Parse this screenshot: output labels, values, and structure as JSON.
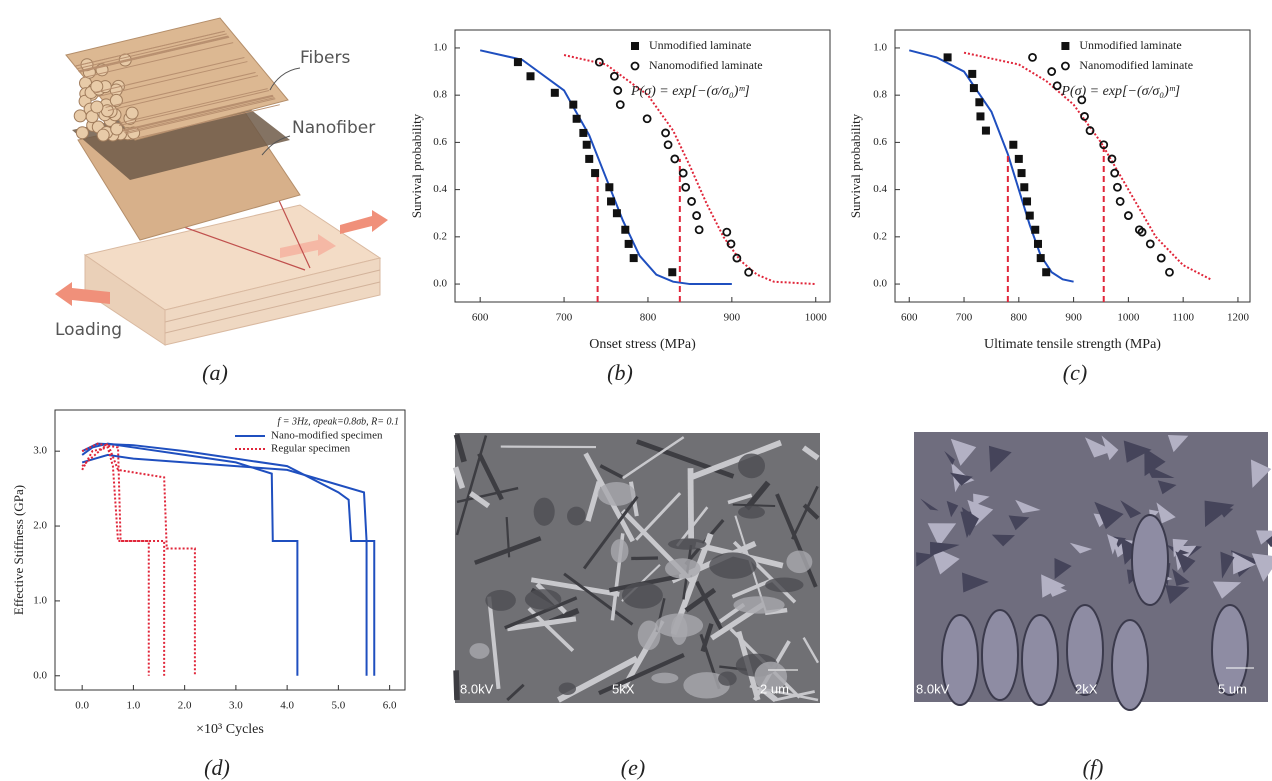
{
  "panel_a": {
    "labels": [
      "Fibers",
      "Nanofiber",
      "Loading"
    ],
    "caption": "(a)"
  },
  "chart_data": [
    {
      "type": "scatter",
      "caption": "(b)",
      "xlabel": "Onset stress (MPa)",
      "ylabel": "Survival probability",
      "xlim": [
        570,
        1017
      ],
      "ylim": [
        -0.076,
        1.076
      ],
      "xticks": [
        600,
        700,
        800,
        900,
        1000
      ],
      "yticks": [
        {
          "value": 0,
          "label": "0.0"
        },
        0.2,
        0.4,
        0.6,
        0.8,
        {
          "value": 1,
          "label": "1.0"
        }
      ],
      "legend": "upper right",
      "annotation": "P(σ) = exp[−(σ/σ₀)ᵐ]",
      "series": [
        {
          "name": "Unmodified laminate",
          "color": "#111111",
          "marker": "square",
          "x": [
            645,
            660,
            689,
            711,
            715,
            723,
            727,
            730,
            737,
            754,
            756,
            763,
            773,
            777,
            783,
            829
          ],
          "values": [
            0.94,
            0.88,
            0.81,
            0.76,
            0.7,
            0.64,
            0.59,
            0.53,
            0.47,
            0.41,
            0.35,
            0.3,
            0.23,
            0.17,
            0.11,
            0.05
          ]
        },
        {
          "name": "Nanomodified laminate",
          "color": "#111111",
          "marker": "circle",
          "x": [
            742,
            760,
            764,
            767,
            799,
            821,
            824,
            832,
            842,
            845,
            852,
            858,
            861,
            894,
            899,
            906,
            920
          ],
          "values": [
            0.94,
            0.88,
            0.82,
            0.76,
            0.7,
            0.64,
            0.59,
            0.53,
            0.47,
            0.41,
            0.35,
            0.29,
            0.23,
            0.22,
            0.17,
            0.11,
            0.05
          ]
        }
      ],
      "fit_lines": [
        {
          "color": "#1f4fbf",
          "style": "solid",
          "x": [
            600,
            650,
            700,
            730,
            750,
            770,
            790,
            810,
            830,
            850,
            900
          ],
          "values": [
            0.99,
            0.95,
            0.82,
            0.63,
            0.45,
            0.27,
            0.12,
            0.04,
            0.01,
            0,
            0
          ]
        },
        {
          "color": "#e0263a",
          "style": "dotted",
          "x": [
            700,
            750,
            800,
            830,
            850,
            870,
            890,
            910,
            930,
            950,
            1000
          ],
          "values": [
            0.97,
            0.93,
            0.8,
            0.65,
            0.5,
            0.34,
            0.2,
            0.1,
            0.04,
            0.01,
            0
          ]
        }
      ],
      "reference_lines": [
        {
          "x": 740,
          "y": 0.47,
          "color": "#e0263a"
        },
        {
          "x": 838,
          "y": 0.53,
          "color": "#e0263a"
        }
      ]
    },
    {
      "type": "scatter",
      "caption": "(c)",
      "xlabel": "Ultimate tensile strength (MPa)",
      "ylabel": "Survival probability",
      "xlim": [
        574,
        1222
      ],
      "ylim": [
        -0.076,
        1.076
      ],
      "xticks": [
        600,
        700,
        800,
        900,
        1000,
        1100,
        1200
      ],
      "yticks": [
        {
          "value": 0,
          "label": "0.0"
        },
        0.2,
        0.4,
        0.6,
        0.8,
        {
          "value": 1,
          "label": "1.0"
        }
      ],
      "legend": "upper right",
      "annotation": "P(σ) = exp[−(σ/σ₀)ᵐ]",
      "series": [
        {
          "name": "Unmodified laminate",
          "color": "#111111",
          "marker": "square",
          "x": [
            670,
            715,
            718,
            728,
            730,
            740,
            790,
            800,
            805,
            810,
            815,
            820,
            830,
            835,
            840,
            850
          ],
          "values": [
            0.96,
            0.89,
            0.83,
            0.77,
            0.71,
            0.65,
            0.59,
            0.53,
            0.47,
            0.41,
            0.35,
            0.29,
            0.23,
            0.17,
            0.11,
            0.05
          ]
        },
        {
          "name": "Nanomodified laminate",
          "color": "#111111",
          "marker": "circle",
          "x": [
            825,
            860,
            870,
            915,
            920,
            930,
            955,
            970,
            975,
            980,
            985,
            1000,
            1020,
            1025,
            1040,
            1060,
            1075
          ],
          "values": [
            0.96,
            0.9,
            0.84,
            0.78,
            0.71,
            0.65,
            0.59,
            0.53,
            0.47,
            0.41,
            0.35,
            0.29,
            0.23,
            0.22,
            0.17,
            0.11,
            0.05
          ]
        }
      ],
      "fit_lines": [
        {
          "color": "#1f4fbf",
          "style": "solid",
          "x": [
            600,
            650,
            700,
            750,
            780,
            800,
            820,
            840,
            860,
            880,
            900
          ],
          "values": [
            0.99,
            0.96,
            0.9,
            0.73,
            0.55,
            0.4,
            0.25,
            0.12,
            0.05,
            0.02,
            0.01
          ]
        },
        {
          "color": "#e0263a",
          "style": "dotted",
          "x": [
            700,
            800,
            850,
            900,
            950,
            1000,
            1050,
            1100,
            1150
          ],
          "values": [
            0.98,
            0.93,
            0.86,
            0.76,
            0.6,
            0.4,
            0.2,
            0.08,
            0.02
          ]
        }
      ],
      "reference_lines": [
        {
          "x": 780,
          "y": 0.55,
          "color": "#e0263a"
        },
        {
          "x": 955,
          "y": 0.59,
          "color": "#e0263a"
        }
      ]
    },
    {
      "type": "line",
      "caption": "(d)",
      "xlabel": "×10³ Cycles",
      "ylabel": "Effective Stiffness (GPa)",
      "xlim": [
        -0.53,
        6.3
      ],
      "ylim": [
        -0.19,
        3.55
      ],
      "xticks": [
        {
          "value": 0,
          "label": "0.0"
        },
        {
          "value": 1,
          "label": "1.0"
        },
        {
          "value": 2,
          "label": "2.0"
        },
        {
          "value": 3,
          "label": "3.0"
        },
        {
          "value": 4,
          "label": "4.0"
        },
        {
          "value": 5,
          "label": "5.0"
        },
        {
          "value": 6,
          "label": "6.0"
        }
      ],
      "yticks": [
        {
          "value": 0,
          "label": "0.0"
        },
        {
          "value": 1,
          "label": "1.0"
        },
        {
          "value": 2,
          "label": "2.0"
        },
        {
          "value": 3,
          "label": "3.0"
        }
      ],
      "legend": "upper right",
      "annotation": "f = 3Hz, σpeak=0.8σb, R= 0.1",
      "series": [
        {
          "name": "Nano-modified specimen",
          "color": "#1f4fbf",
          "style": "solid",
          "curves": [
            {
              "x": [
                0,
                0.2,
                0.5,
                1,
                2,
                3,
                3.7,
                3.72,
                4.2,
                4.2
              ],
              "values": [
                2.95,
                3.05,
                3.1,
                3.05,
                2.95,
                2.85,
                2.7,
                1.8,
                1.8,
                0
              ]
            },
            {
              "x": [
                0,
                0.3,
                1,
                2,
                3,
                4,
                5,
                5.2,
                5.25,
                5.55,
                5.55
              ],
              "values": [
                3.0,
                3.1,
                3.08,
                3.0,
                2.9,
                2.8,
                2.45,
                2.35,
                1.8,
                1.8,
                0
              ]
            },
            {
              "x": [
                0,
                0.5,
                1,
                2,
                3,
                4,
                4.5,
                5.5,
                5.55,
                5.7,
                5.7
              ],
              "values": [
                2.85,
                2.95,
                2.9,
                2.85,
                2.8,
                2.75,
                2.65,
                2.45,
                1.8,
                1.8,
                0
              ]
            }
          ]
        },
        {
          "name": "Regular specimen",
          "color": "#e0263a",
          "style": "dotted",
          "curves": [
            {
              "x": [
                0,
                0.2,
                0.5,
                0.6,
                0.7,
                1.3,
                1.3
              ],
              "values": [
                2.75,
                3.0,
                3.05,
                2.8,
                1.8,
                1.8,
                0
              ]
            },
            {
              "x": [
                0,
                0.3,
                0.7,
                0.75,
                1.6,
                1.6
              ],
              "values": [
                3.0,
                3.1,
                3.05,
                1.8,
                1.8,
                0
              ]
            },
            {
              "x": [
                0,
                0.5,
                0.7,
                1.6,
                1.65,
                2.2,
                2.2
              ],
              "values": [
                2.8,
                3.1,
                2.75,
                2.65,
                1.7,
                1.7,
                0
              ]
            }
          ]
        }
      ]
    }
  ],
  "panel_e": {
    "caption": "(e)",
    "labels": [
      "8.0kV",
      "5kX",
      "2 um"
    ]
  },
  "panel_f": {
    "caption": "(f)",
    "labels": [
      "8.0kV",
      "2kX",
      "5 um"
    ]
  }
}
